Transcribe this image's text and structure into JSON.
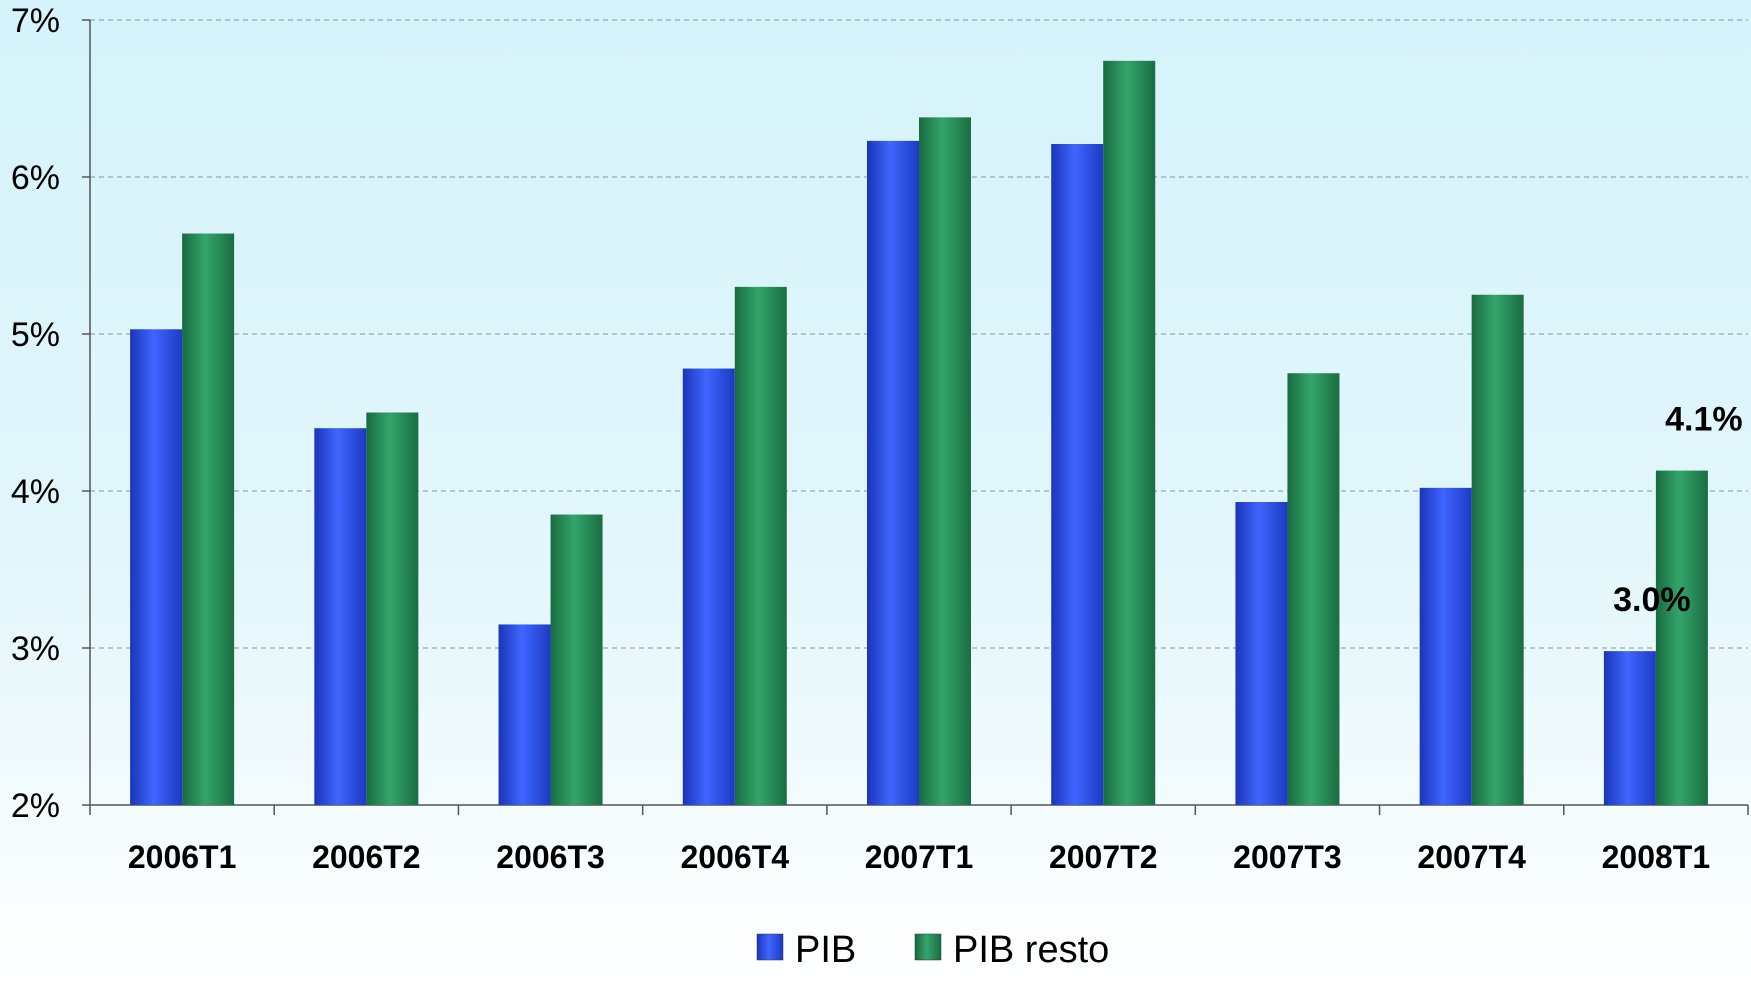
{
  "chart_data": {
    "type": "bar",
    "categories": [
      "2006T1",
      "2006T2",
      "2006T3",
      "2006T4",
      "2007T1",
      "2007T2",
      "2007T3",
      "2007T4",
      "2008T1"
    ],
    "series": [
      {
        "name": "PIB",
        "values": [
          5.03,
          4.4,
          3.15,
          4.78,
          6.23,
          6.21,
          3.93,
          4.02,
          2.98
        ],
        "color": "#2a4de6"
      },
      {
        "name": "PIB resto",
        "values": [
          5.64,
          4.5,
          3.85,
          5.3,
          6.38,
          6.74,
          4.75,
          5.25,
          4.13
        ],
        "color": "#2a8a5a"
      }
    ],
    "ylim": [
      2,
      7
    ],
    "yticks": [
      "2%",
      "3%",
      "4%",
      "5%",
      "6%",
      "7%"
    ],
    "ytick_values": [
      2,
      3,
      4,
      5,
      6,
      7
    ],
    "grid": true,
    "legend_position": "bottom-center",
    "annotations": [
      {
        "category": "2008T1",
        "series": "PIB",
        "text": "3.0%"
      },
      {
        "category": "2008T1",
        "series": "PIB resto",
        "text": "4.1%"
      }
    ],
    "title": "",
    "xlabel": "",
    "ylabel": ""
  }
}
